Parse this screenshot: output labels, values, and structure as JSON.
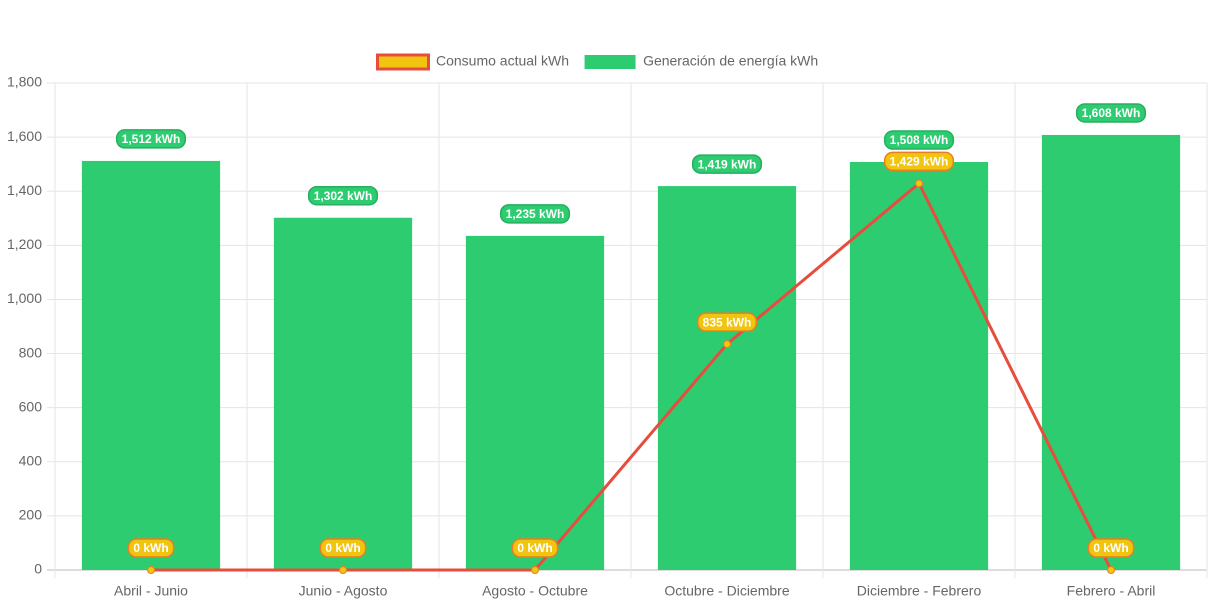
{
  "chart_data": {
    "type": "bar",
    "categories": [
      "Abril - Junio",
      "Junio - Agosto",
      "Agosto - Octubre",
      "Octubre - Diciembre",
      "Diciembre - Febrero",
      "Febrero - Abril"
    ],
    "series": [
      {
        "name": "Consumo actual kWh",
        "type": "line",
        "color": "#e74c3c",
        "point_color": "#f1c40f",
        "values": [
          0,
          0,
          0,
          835,
          1429,
          0
        ],
        "value_labels": [
          "0 kWh",
          "0 kWh",
          "0 kWh",
          "835 kWh",
          "1,429 kWh",
          "0 kWh"
        ]
      },
      {
        "name": "Generación de energía kWh",
        "type": "bar",
        "color": "#2ecc71",
        "values": [
          1512,
          1302,
          1235,
          1419,
          1508,
          1608
        ],
        "value_labels": [
          "1,512 kWh",
          "1,302 kWh",
          "1,235 kWh",
          "1,419 kWh",
          "1,508 kWh",
          "1,608 kWh"
        ]
      }
    ],
    "ylim": [
      0,
      1800
    ],
    "yticks": [
      0,
      200,
      400,
      600,
      800,
      {
        "value": 1000,
        "label": "1,000"
      },
      {
        "value": 1200,
        "label": "1,200"
      },
      {
        "value": 1400,
        "label": "1,400"
      },
      {
        "value": 1600,
        "label": "1,600"
      },
      {
        "value": 1800,
        "label": "1,800"
      }
    ],
    "grid": true,
    "legend": "top"
  }
}
